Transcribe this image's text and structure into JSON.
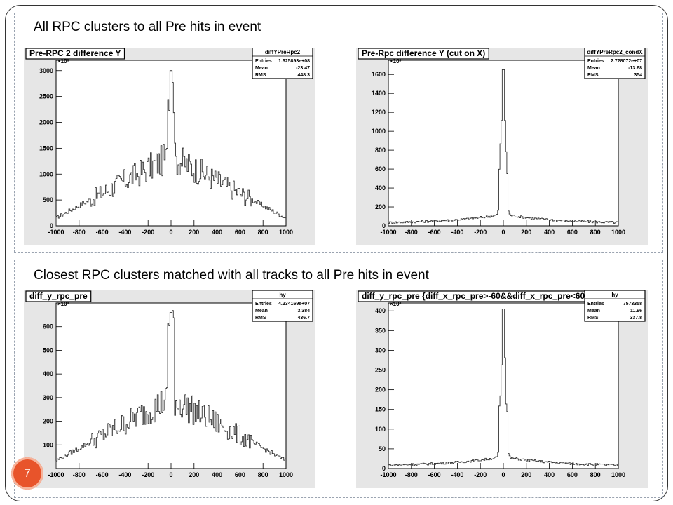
{
  "slide": {
    "heading_top": "All RPC clusters to all Pre hits in event",
    "heading_bottom": "Closest RPC clusters matched with all tracks to all Pre hits in event",
    "page_number": "7"
  },
  "colors": {
    "line": "#333333",
    "background": "#e6e6e6",
    "badge": "#e8542b"
  },
  "chart_data": [
    {
      "type": "histogram",
      "title": "Pre-RPC 2 difference Y",
      "multiplier_label": "×10³",
      "stats": {
        "name": "diffYPreRpc2",
        "rows": [
          [
            "Entries",
            "1.625893e+08"
          ],
          [
            "Mean",
            "-23.47"
          ],
          [
            "RMS",
            "448.3"
          ]
        ]
      },
      "xlim": [
        -1000,
        1000
      ],
      "ylim": [
        0,
        3200
      ],
      "x_ticks": [
        -1000,
        -800,
        -600,
        -400,
        -200,
        0,
        200,
        400,
        600,
        800,
        1000
      ],
      "y_ticks": [
        0,
        500,
        1000,
        1500,
        2000,
        2500,
        3000
      ],
      "profile": "wide",
      "peak": 3000
    },
    {
      "type": "histogram",
      "title": "Pre-Rpc difference Y (cut on X)",
      "multiplier_label": "×10³",
      "stats": {
        "name": "diffYPreRpc2_condX",
        "rows": [
          [
            "Entries",
            "2.728072e+07"
          ],
          [
            "Mean",
            "-13.68"
          ],
          [
            "RMS",
            "354"
          ]
        ]
      },
      "xlim": [
        -1000,
        1000
      ],
      "ylim": [
        0,
        1750
      ],
      "x_ticks": [
        -1000,
        -800,
        -600,
        -400,
        -200,
        0,
        200,
        400,
        600,
        800,
        1000
      ],
      "y_ticks": [
        0,
        200,
        400,
        600,
        800,
        1000,
        1200,
        1400,
        1600
      ],
      "profile": "narrow",
      "peak": 1650
    },
    {
      "type": "histogram",
      "title": "diff_y_rpc_pre",
      "multiplier_label": "×10³",
      "stats": {
        "name": "hy",
        "rows": [
          [
            "Entries",
            "4.234169e+07"
          ],
          [
            "Mean",
            "3.384"
          ],
          [
            "RMS",
            "436.7"
          ]
        ]
      },
      "xlim": [
        -1000,
        1000
      ],
      "ylim": [
        0,
        700
      ],
      "x_ticks": [
        -1000,
        -800,
        -600,
        -400,
        -200,
        0,
        200,
        400,
        600,
        800,
        1000
      ],
      "y_ticks": [
        100,
        200,
        300,
        400,
        500,
        600
      ],
      "profile": "wide",
      "peak": 660
    },
    {
      "type": "histogram",
      "title": "diff_y_rpc_pre {diff_x_rpc_pre>-60&&diff_x_rpc_pre<60}",
      "multiplier_label": "×10³",
      "stats": {
        "name": "hy",
        "rows": [
          [
            "Entries",
            "7573358"
          ],
          [
            "Mean",
            "11.96"
          ],
          [
            "RMS",
            "337.8"
          ]
        ]
      },
      "xlim": [
        -1000,
        1000
      ],
      "ylim": [
        0,
        420
      ],
      "x_ticks": [
        -1000,
        -800,
        -600,
        -400,
        -200,
        0,
        200,
        400,
        600,
        800,
        1000
      ],
      "y_ticks": [
        0,
        50,
        100,
        150,
        200,
        250,
        300,
        350,
        400
      ],
      "profile": "narrow",
      "peak": 405
    }
  ]
}
